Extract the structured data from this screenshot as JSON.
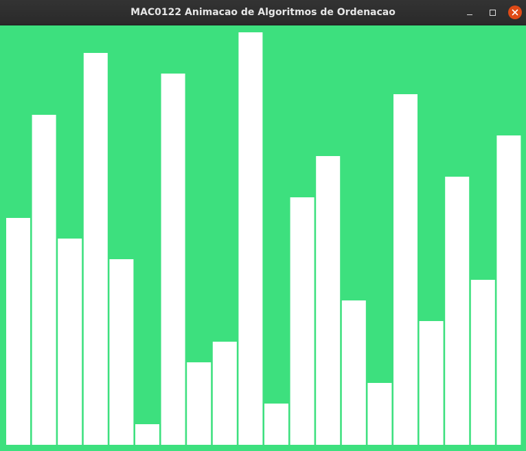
{
  "window": {
    "title": "MAC0122 Animacao de Algoritmos de Ordenacao",
    "controls": {
      "minimize": "minimize",
      "maximize": "maximize",
      "close": "close"
    },
    "icons": [
      "minimize-icon",
      "maximize-icon",
      "close-icon"
    ],
    "colors": {
      "background": "#3de07e",
      "bar": "#ffffff",
      "close_button": "#df4a16"
    }
  },
  "chart_data": {
    "type": "bar",
    "values": [
      330,
      480,
      300,
      570,
      270,
      30,
      540,
      120,
      150,
      600,
      60,
      360,
      420,
      210,
      90,
      510,
      180,
      390,
      240,
      450
    ],
    "ylim": [
      0,
      600
    ],
    "grid": false,
    "legend": "none"
  }
}
